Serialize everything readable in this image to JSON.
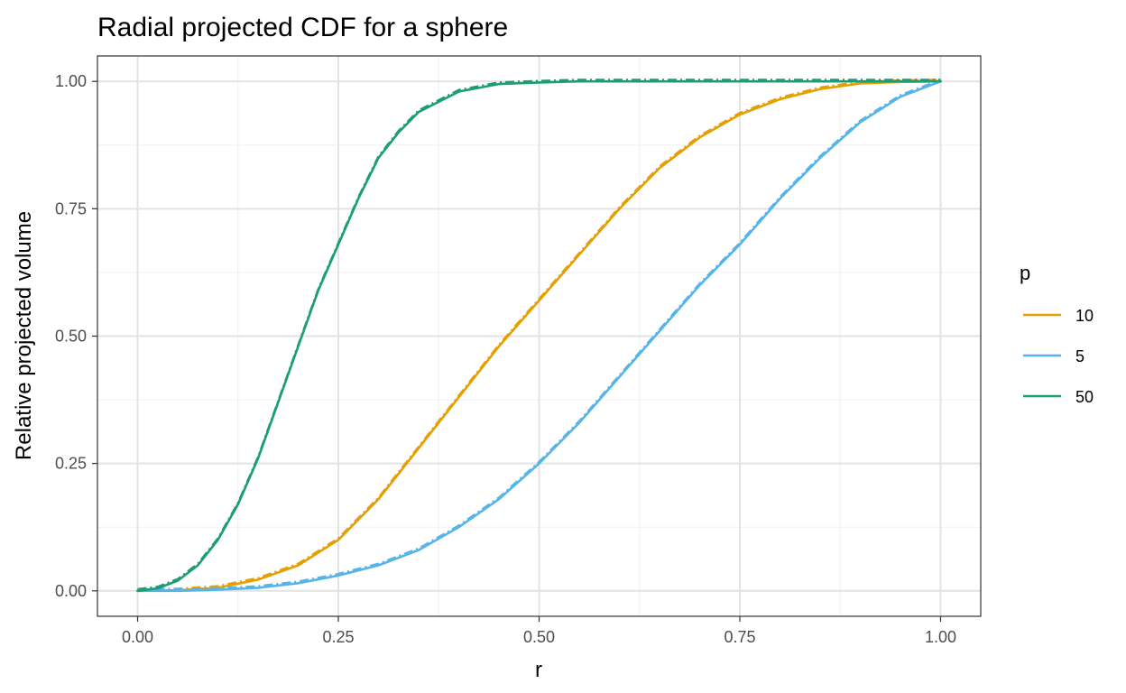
{
  "chart_data": {
    "type": "line",
    "title": "Radial projected CDF for a sphere",
    "xlabel": "r",
    "ylabel": "Relative projected volume",
    "xlim": [
      0.0,
      1.0
    ],
    "ylim": [
      0.0,
      1.0
    ],
    "x_ticks": [
      "0.00",
      "0.25",
      "0.50",
      "0.75",
      "1.00"
    ],
    "y_ticks": [
      "0.00",
      "0.25",
      "0.50",
      "0.75",
      "1.00"
    ],
    "grid": true,
    "legend": {
      "title": "p",
      "placement": "right"
    },
    "series": [
      {
        "name": "10",
        "color": "#E69F00",
        "x": [
          0.0,
          0.05,
          0.1,
          0.15,
          0.2,
          0.25,
          0.3,
          0.35,
          0.4,
          0.45,
          0.5,
          0.55,
          0.6,
          0.65,
          0.7,
          0.75,
          0.8,
          0.85,
          0.9,
          0.95,
          1.0
        ],
        "y": [
          0.0,
          0.001,
          0.006,
          0.022,
          0.05,
          0.1,
          0.18,
          0.28,
          0.38,
          0.48,
          0.57,
          0.66,
          0.75,
          0.83,
          0.89,
          0.935,
          0.965,
          0.985,
          0.996,
          0.999,
          1.0
        ]
      },
      {
        "name": "5",
        "color": "#56B4E9",
        "x": [
          0.0,
          0.05,
          0.1,
          0.15,
          0.2,
          0.25,
          0.3,
          0.35,
          0.4,
          0.45,
          0.5,
          0.55,
          0.6,
          0.65,
          0.7,
          0.75,
          0.8,
          0.85,
          0.9,
          0.95,
          1.0
        ],
        "y": [
          0.0,
          0.0,
          0.002,
          0.006,
          0.015,
          0.03,
          0.05,
          0.08,
          0.125,
          0.18,
          0.25,
          0.33,
          0.42,
          0.51,
          0.6,
          0.68,
          0.77,
          0.85,
          0.92,
          0.97,
          1.0
        ]
      },
      {
        "name": "50",
        "color": "#1B9E77",
        "x": [
          0.0,
          0.025,
          0.05,
          0.075,
          0.1,
          0.125,
          0.15,
          0.175,
          0.2,
          0.225,
          0.25,
          0.275,
          0.3,
          0.325,
          0.35,
          0.4,
          0.45,
          0.5,
          0.55,
          1.0
        ],
        "y": [
          0.0,
          0.005,
          0.02,
          0.05,
          0.1,
          0.17,
          0.26,
          0.37,
          0.48,
          0.59,
          0.68,
          0.77,
          0.85,
          0.9,
          0.94,
          0.98,
          0.995,
          0.998,
          1.0,
          1.0
        ]
      }
    ]
  }
}
